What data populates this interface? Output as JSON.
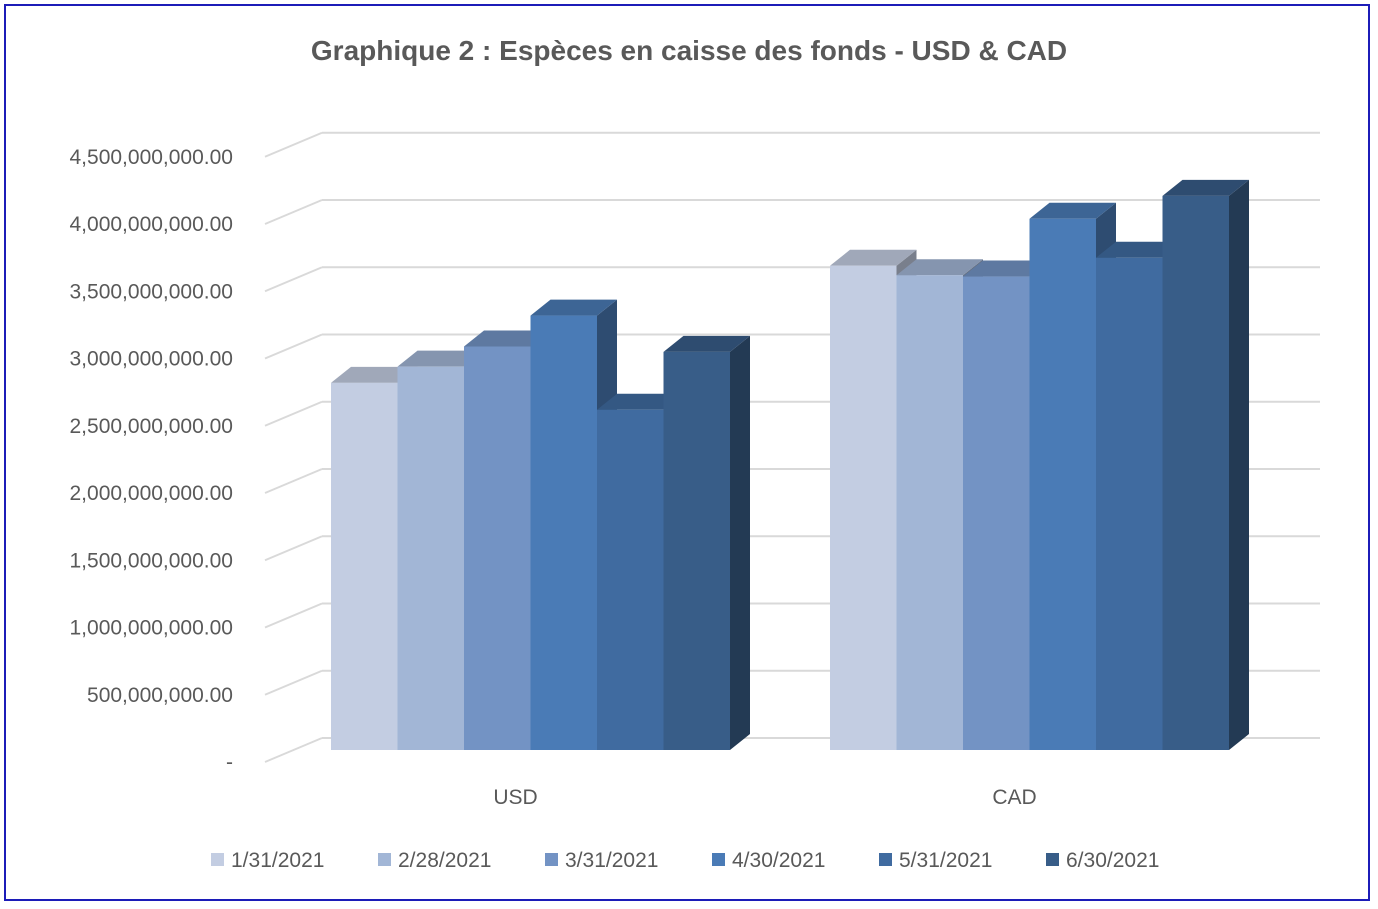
{
  "chart_data": {
    "type": "bar",
    "title": "Graphique 2 : Espèces en caisse des fonds - USD & CAD",
    "categories": [
      "USD",
      "CAD"
    ],
    "series": [
      {
        "name": "1/31/2021",
        "values": [
          2730000000,
          3600000000
        ],
        "color": "#c3cde2"
      },
      {
        "name": "2/28/2021",
        "values": [
          2850000000,
          3530000000
        ],
        "color": "#a2b6d6"
      },
      {
        "name": "3/31/2021",
        "values": [
          3000000000,
          3520000000
        ],
        "color": "#7393c4"
      },
      {
        "name": "4/30/2021",
        "values": [
          3230000000,
          3950000000
        ],
        "color": "#4a7bb6"
      },
      {
        "name": "5/31/2021",
        "values": [
          2530000000,
          3660000000
        ],
        "color": "#406ba0"
      },
      {
        "name": "6/30/2021",
        "values": [
          2960000000,
          4120000000
        ],
        "color": "#385d88"
      }
    ],
    "yticks": [
      {
        "value": 0,
        "label": "-"
      },
      {
        "value": 500000000,
        "label": "500,000,000.00"
      },
      {
        "value": 1000000000,
        "label": "1,000,000,000.00"
      },
      {
        "value": 1500000000,
        "label": "1,500,000,000.00"
      },
      {
        "value": 2000000000,
        "label": "2,000,000,000.00"
      },
      {
        "value": 2500000000,
        "label": "2,500,000,000.00"
      },
      {
        "value": 3000000000,
        "label": "3,000,000,000.00"
      },
      {
        "value": 3500000000,
        "label": "3,500,000,000.00"
      },
      {
        "value": 4000000000,
        "label": "4,000,000,000.00"
      },
      {
        "value": 4500000000,
        "label": "4,500,000,000.00"
      }
    ],
    "ylim": [
      0,
      4500000000
    ],
    "xlabel": "",
    "ylabel": "",
    "grid": true,
    "legend": "bottom",
    "style": "3d-clustered"
  }
}
